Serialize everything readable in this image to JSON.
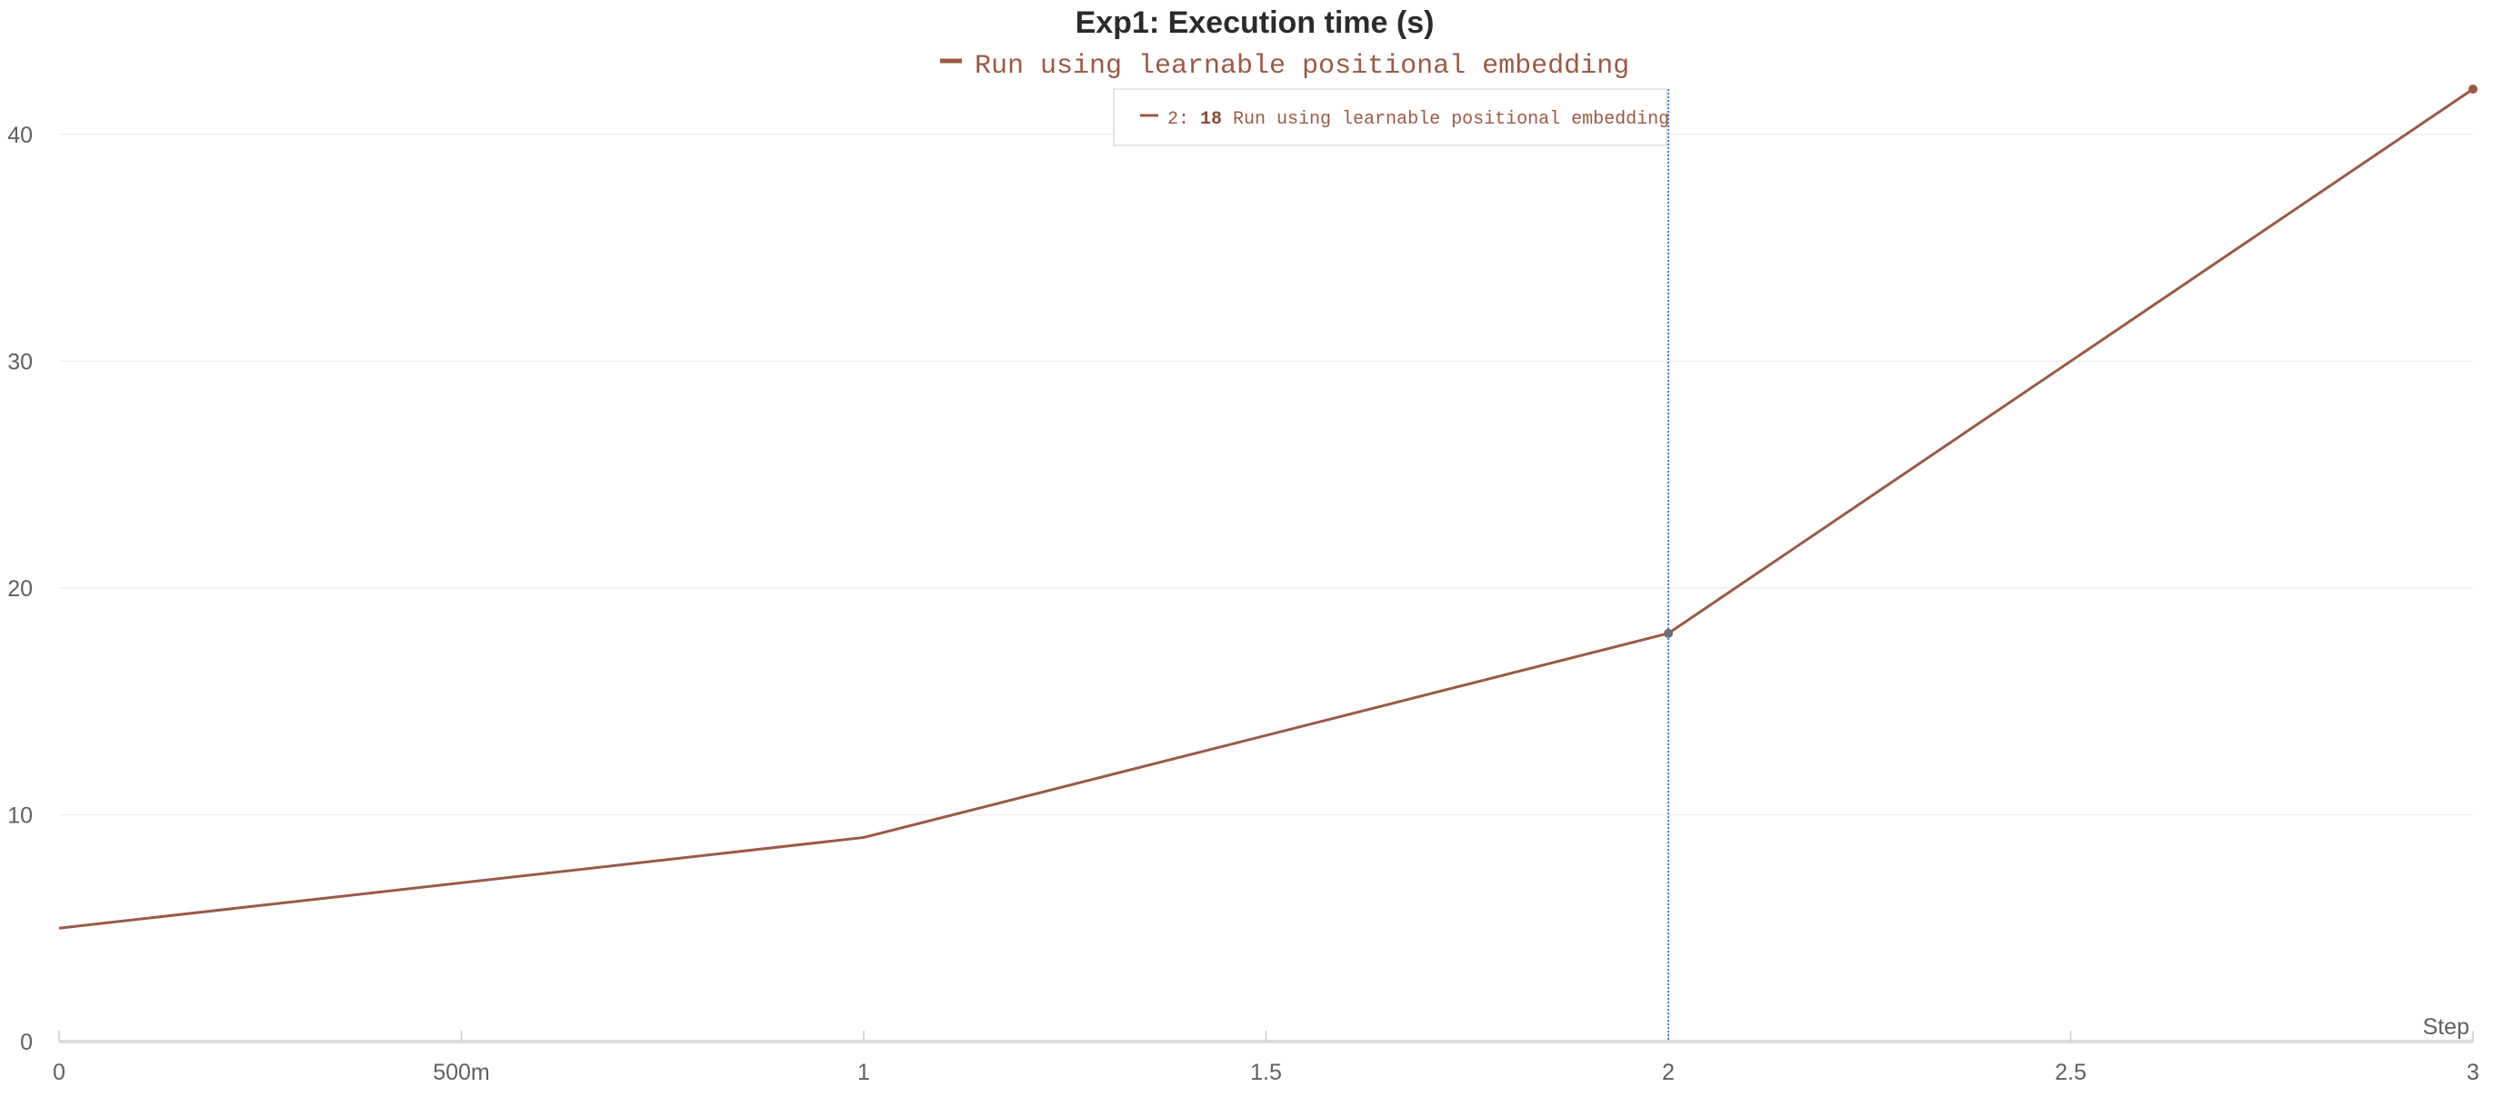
{
  "chart_data": {
    "type": "line",
    "title": "Exp1: Execution time (s)",
    "xlabel": "Step",
    "ylabel": "",
    "x": [
      0,
      1,
      2,
      3
    ],
    "series": [
      {
        "name": "Run using learnable positional embedding",
        "values": [
          5,
          9,
          18,
          42
        ],
        "color": "#9a5a44"
      }
    ],
    "xlim": [
      0,
      3
    ],
    "ylim": [
      0,
      42
    ],
    "x_ticks": [
      0,
      0.5,
      1,
      1.5,
      2,
      2.5,
      3
    ],
    "x_tick_labels": [
      "0",
      "500m",
      "1",
      "1.5",
      "2",
      "2.5",
      "3"
    ],
    "y_ticks": [
      0,
      10,
      20,
      30,
      40
    ],
    "y_tick_labels": [
      "0",
      "10",
      "20",
      "30",
      "40"
    ],
    "grid": true,
    "legend_position": "top-center",
    "hover": {
      "x": 2,
      "x_label": "2:",
      "value_label": "18",
      "series_label": "Run using learnable positional embedding",
      "line_color": "#4a7bd6"
    }
  }
}
